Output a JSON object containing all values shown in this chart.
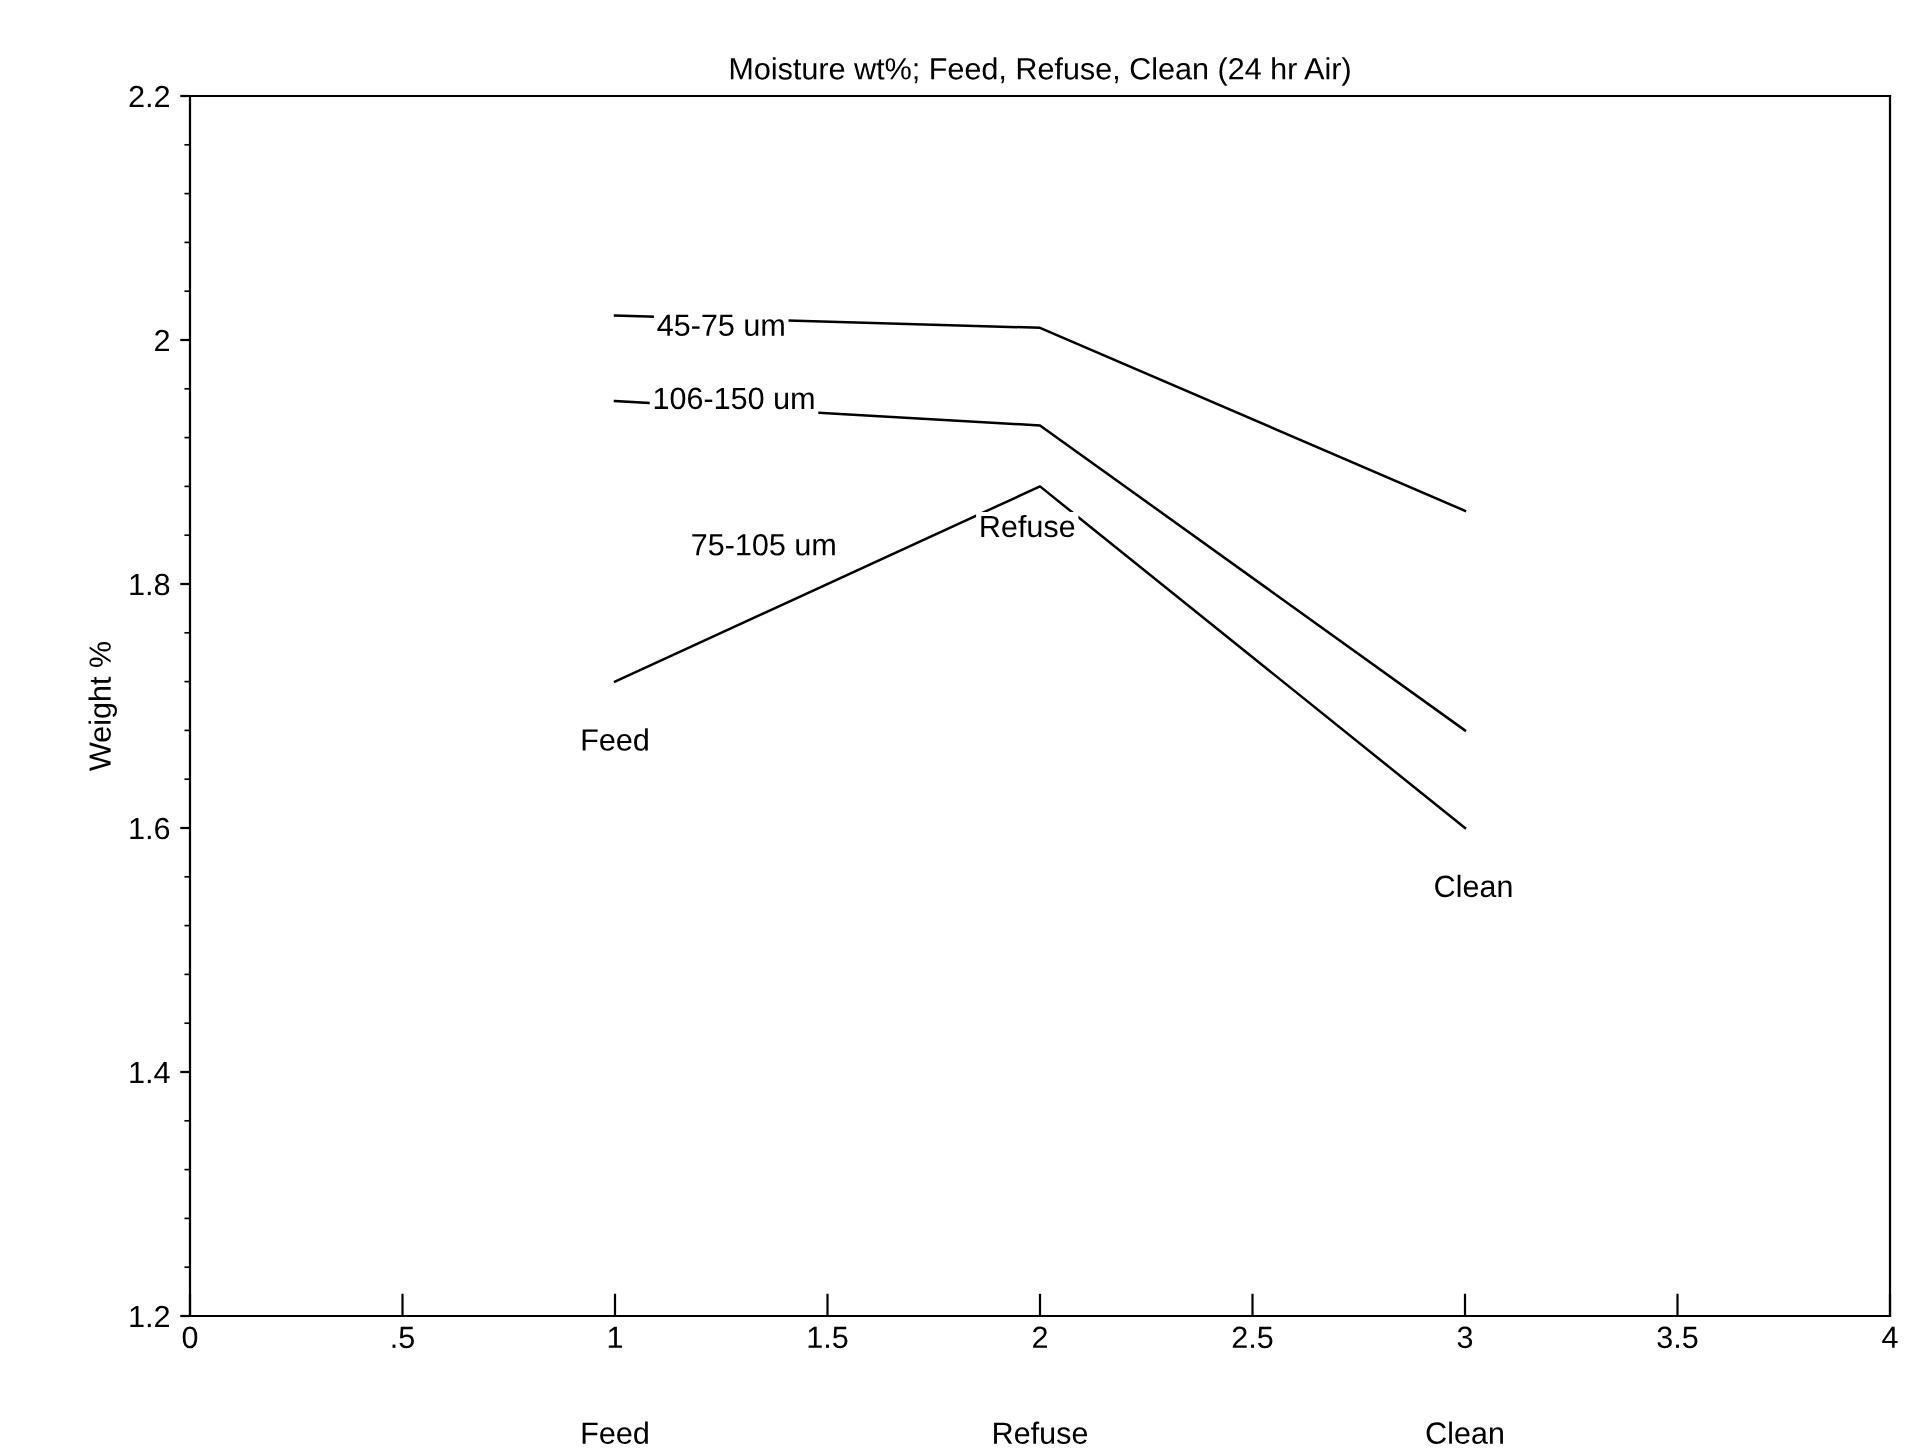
{
  "chart_data": {
    "type": "line",
    "title": "Moisture wt%; Feed, Refuse, Clean (24 hr Air)",
    "ylabel": "Weight %",
    "x": [
      1,
      2,
      3
    ],
    "series": [
      {
        "name": "45-75 um",
        "color": "#000000",
        "values": [
          2.02,
          2.01,
          1.86
        ]
      },
      {
        "name": "106-150 um",
        "color": "#000000",
        "values": [
          1.95,
          1.93,
          1.68
        ]
      },
      {
        "name": "75-105 um",
        "color": "#000000",
        "values": [
          1.72,
          1.88,
          1.6
        ]
      }
    ],
    "xlim": [
      0,
      4
    ],
    "xticks": [
      0,
      {
        "value": 0.5,
        "label": ".5"
      },
      1,
      1.5,
      2,
      2.5,
      3,
      3.5,
      4
    ],
    "ylim": [
      1.2,
      2.2
    ],
    "yticks": [
      1.2,
      1.4,
      1.6,
      1.8,
      2,
      2.2
    ],
    "annotations": [
      "Feed",
      "Refuse",
      "Clean",
      "Feed",
      "Refuse",
      "Clean"
    ],
    "grid": false,
    "legend": false,
    "marker": "none",
    "line_style": "solid"
  }
}
